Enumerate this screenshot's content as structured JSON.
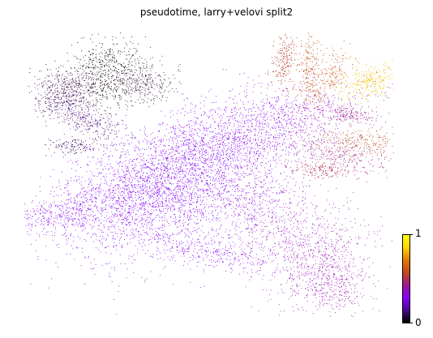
{
  "title": "pseudotime, larry+velovi split2",
  "colorbar": {
    "max_label": "1",
    "min_label": "0",
    "colormap": "gnuplot",
    "stops": [
      "#000000",
      "#4b0a8f",
      "#8b00ff",
      "#a0188f",
      "#c24a1e",
      "#e07a00",
      "#ffd700",
      "#ffff00"
    ]
  },
  "chart_data": {
    "type": "scatter",
    "title": "pseudotime, larry+velovi split2",
    "xlabel": "",
    "ylabel": "",
    "color_variable": "pseudotime",
    "color_range": [
      0,
      1
    ],
    "axes_visible": false,
    "grid": false,
    "legend": "colorbar at right, bottom"
  }
}
